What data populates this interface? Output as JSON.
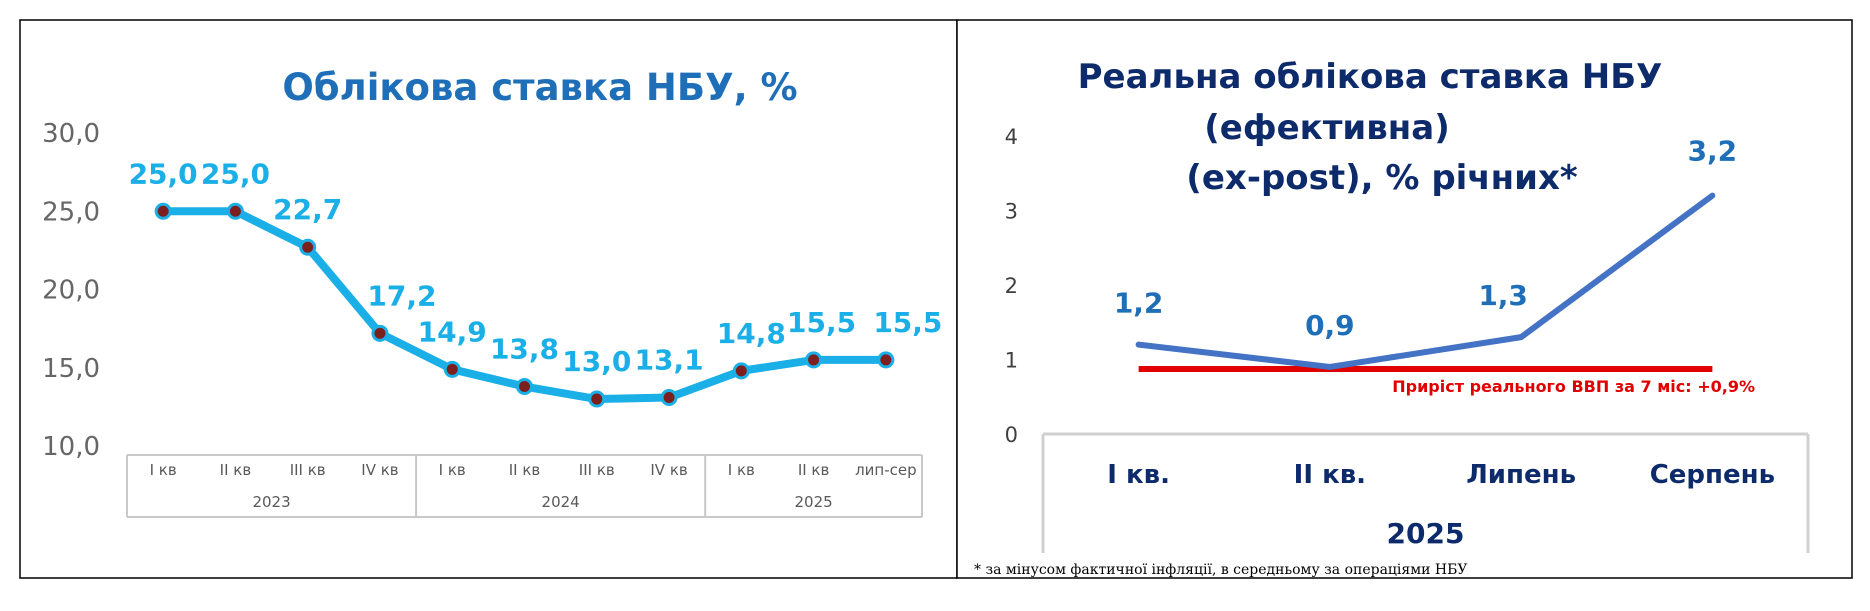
{
  "chart_data": [
    {
      "type": "line",
      "title": "Облікова ставка НБУ, %",
      "ylim": [
        10,
        30
      ],
      "yticks": [
        "30,0",
        "25,0",
        "20,0",
        "15,0",
        "10,0"
      ],
      "categories": [
        "I кв",
        "II кв",
        "III кв",
        "IV кв",
        "I кв",
        "II кв",
        "III кв",
        "IV кв",
        "I кв",
        "II кв",
        "лип-сер"
      ],
      "groups": [
        {
          "label": "2023",
          "count": 4
        },
        {
          "label": "2024",
          "count": 4
        },
        {
          "label": "2025",
          "count": 3
        }
      ],
      "values": [
        25.0,
        25.0,
        22.7,
        17.2,
        14.9,
        13.8,
        13.0,
        13.1,
        14.8,
        15.5,
        15.5
      ],
      "value_labels": [
        "25,0",
        "25,0",
        "22,7",
        "17,2",
        "14,9",
        "13,8",
        "13,0",
        "13,1",
        "14,8",
        "15,5",
        "15,5"
      ],
      "colors": {
        "line": "#1AAFE6",
        "marker": "#7B1F1F",
        "title": "#1F6FB8",
        "labels": "#1AAFE6"
      },
      "grid": false,
      "legend": "none"
    },
    {
      "type": "line",
      "title_lines": [
        "Реальна облікова ставка НБУ",
        "(ефективна)",
        "(ex-post), % річних*"
      ],
      "ylim": [
        0,
        4
      ],
      "yticks": [
        "0",
        "1",
        "2",
        "3",
        "4"
      ],
      "categories": [
        "І кв.",
        "ІІ кв.",
        "Липень",
        "Серпень"
      ],
      "group_label": "2025",
      "values": [
        1.2,
        0.9,
        1.3,
        3.2
      ],
      "value_labels": [
        "1,2",
        "0,9",
        "1,3",
        "3,2"
      ],
      "reference_line": {
        "value": 0.9,
        "label": "Приріст реального ВВП за 7 міс: +0,9%",
        "color": "#E00000"
      },
      "footnote": "* за мінусом фактичної інфляції,  в середньому за операціями НБУ",
      "colors": {
        "line": "#4472C4",
        "title": "#0D2B6B",
        "labels": "#1F6FB8",
        "categories": "#0D2B6B"
      },
      "grid": false,
      "legend": "none"
    }
  ]
}
